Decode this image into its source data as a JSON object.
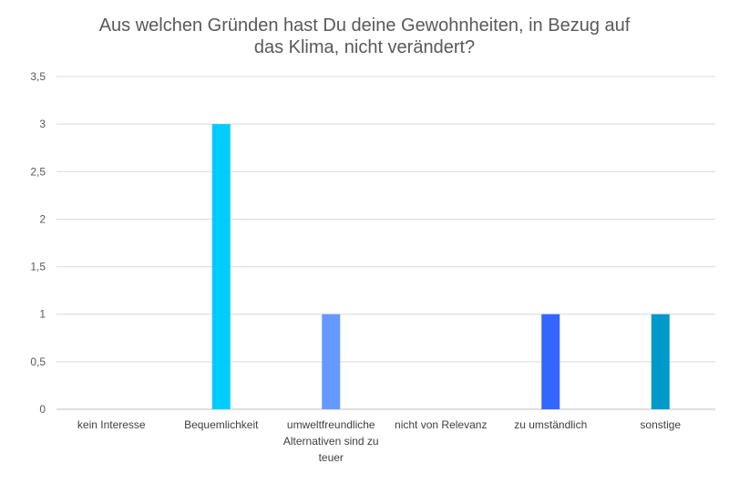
{
  "chart_data": {
    "type": "bar",
    "title_lines": [
      "Aus welchen Gründen hast Du deine Gewohnheiten, in Bezug auf",
      "das Klima, nicht verändert?"
    ],
    "categories": [
      [
        "kein Interesse"
      ],
      [
        "Bequemlichkeit"
      ],
      [
        "umweltfreundliche",
        "Alternativen sind zu",
        "teuer"
      ],
      [
        "nicht von Relevanz"
      ],
      [
        "zu umständlich"
      ],
      [
        "sonstige"
      ]
    ],
    "values": [
      0,
      3,
      1,
      0,
      1,
      1
    ],
    "bar_colors": [
      "#00B0F0",
      "#00CCFF",
      "#6699FF",
      "#6699FF",
      "#3366FF",
      "#0099CC"
    ],
    "ylim": [
      0,
      3.5
    ],
    "yticks": [
      "0",
      "0,5",
      "1",
      "1,5",
      "2",
      "2,5",
      "3",
      "3,5"
    ],
    "grid": true,
    "legend": "none"
  }
}
